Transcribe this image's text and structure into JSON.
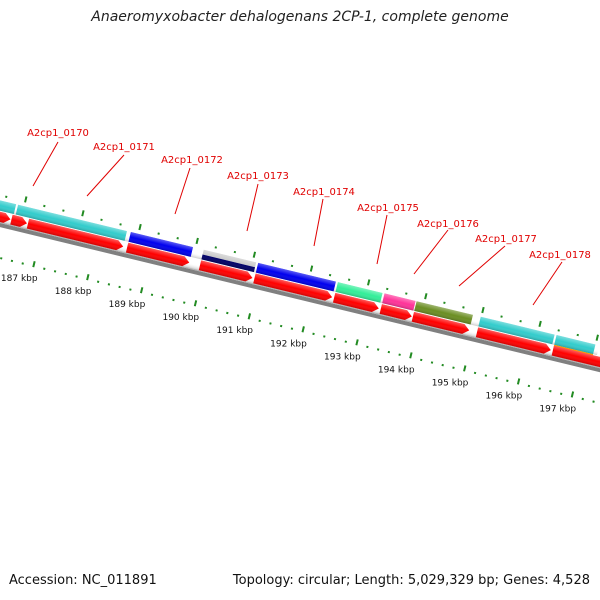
{
  "title": "Anaeromyxobacter dehalogenans 2CP-1, complete genome",
  "footer": {
    "accession": "Accession: NC_011891",
    "topology": "Topology: circular; Length: 5,029,329 bp; Genes: 4,528"
  },
  "gene_labels": [
    "A2cp1_0170",
    "A2cp1_0171",
    "A2cp1_0172",
    "A2cp1_0173",
    "A2cp1_0174",
    "A2cp1_0175",
    "A2cp1_0176",
    "A2cp1_0177",
    "A2cp1_0178"
  ],
  "kbp_labels": [
    "187 kbp",
    "188 kbp",
    "189 kbp",
    "190 kbp",
    "191 kbp",
    "192 kbp",
    "193 kbp",
    "194 kbp",
    "195 kbp",
    "196 kbp",
    "197 kbp"
  ],
  "colors": {
    "cds": "#ff0000",
    "cyan": "#33cccc",
    "blue": "#0000ee",
    "navy": "#000066",
    "gray": "#c0c0c0",
    "mint": "#33ee99",
    "pink": "#ff3399",
    "olive": "#6b8e23",
    "orange": "#ff9900",
    "label": "#e00000",
    "tick": "#228b22"
  }
}
